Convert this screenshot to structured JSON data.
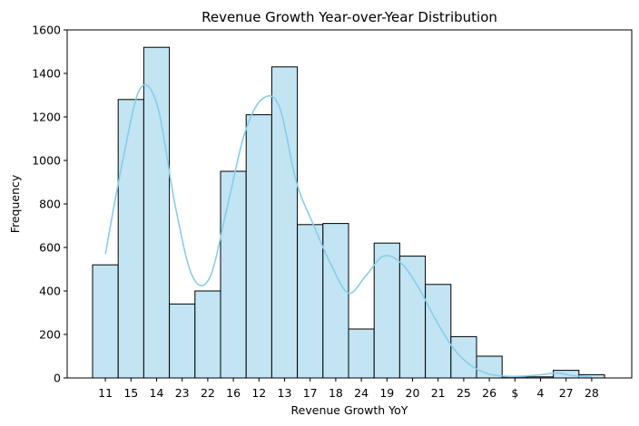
{
  "chart_data": {
    "type": "bar",
    "title": "Revenue Growth Year-over-Year Distribution",
    "xlabel": "Revenue Growth YoY",
    "ylabel": "Frequency",
    "ylim": [
      0,
      1600
    ],
    "yticks": [
      0,
      200,
      400,
      600,
      800,
      1000,
      1200,
      1400,
      1600
    ],
    "categories": [
      "11",
      "15",
      "14",
      "23",
      "22",
      "16",
      "12",
      "13",
      "17",
      "18",
      "24",
      "19",
      "20",
      "21",
      "25",
      "26",
      "$",
      "4",
      "27",
      "28"
    ],
    "values": [
      520,
      1280,
      1520,
      340,
      400,
      950,
      1210,
      1430,
      705,
      710,
      225,
      620,
      560,
      430,
      190,
      100,
      5,
      5,
      35,
      15
    ],
    "kde": [
      570,
      1000,
      1330,
      1250,
      800,
      470,
      460,
      780,
      1120,
      1280,
      1250,
      900,
      700,
      520,
      390,
      470,
      560,
      530,
      420,
      270,
      140,
      60,
      20,
      8,
      8,
      14,
      22,
      10,
      5
    ],
    "grid": false,
    "colors": {
      "bar_fill": "#c2e4f3",
      "bar_edge": "#000000",
      "kde_line": "#87ceeb"
    }
  }
}
